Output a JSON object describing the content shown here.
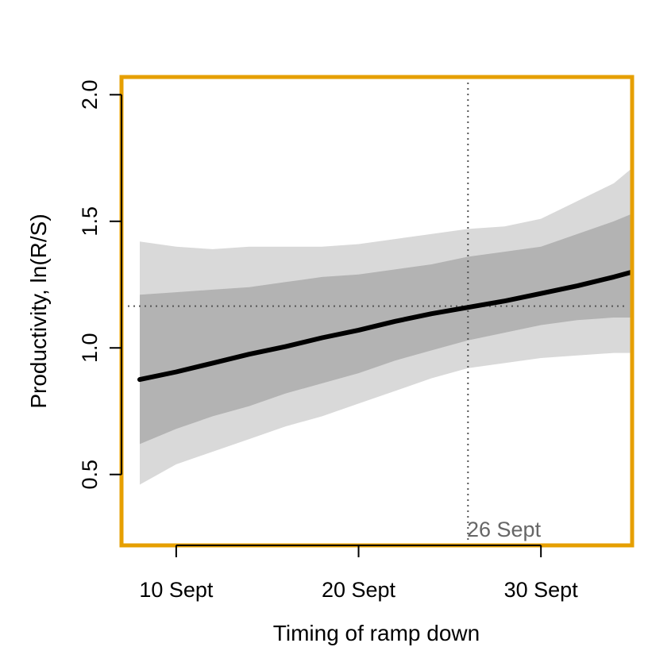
{
  "chart_data": {
    "type": "line",
    "xlabel": "Timing of ramp down",
    "ylabel": "Productivity, ln(R/S)",
    "xlim": [
      "2020-09-07",
      "2020-10-05"
    ],
    "ylim": [
      0.22,
      2.07
    ],
    "x_ticks": [
      {
        "value": "2020-09-10",
        "label": "10 Sept"
      },
      {
        "value": "2020-09-20",
        "label": "20 Sept"
      },
      {
        "value": "2020-09-30",
        "label": "30 Sept"
      }
    ],
    "y_ticks": [
      {
        "value": 0.5,
        "label": "0.5"
      },
      {
        "value": 1.0,
        "label": "1.0"
      },
      {
        "value": 1.5,
        "label": "1.5"
      },
      {
        "value": 2.0,
        "label": "2.0"
      }
    ],
    "reference_lines": {
      "vertical": {
        "x": "2020-09-26",
        "label": "26 Sept"
      },
      "horizontal": {
        "y": 1.165
      }
    },
    "series": [
      {
        "role": "outer-interval",
        "color": "#d9d9d9",
        "x": [
          "2020-09-08",
          "2020-09-10",
          "2020-09-12",
          "2020-09-14",
          "2020-09-16",
          "2020-09-18",
          "2020-09-20",
          "2020-09-22",
          "2020-09-24",
          "2020-09-26",
          "2020-09-28",
          "2020-09-30",
          "2020-10-02",
          "2020-10-04",
          "2020-10-05"
        ],
        "upper": [
          1.42,
          1.4,
          1.39,
          1.4,
          1.4,
          1.4,
          1.41,
          1.43,
          1.45,
          1.47,
          1.48,
          1.51,
          1.58,
          1.65,
          1.71
        ],
        "lower": [
          0.46,
          0.54,
          0.59,
          0.64,
          0.69,
          0.73,
          0.78,
          0.83,
          0.88,
          0.92,
          0.94,
          0.96,
          0.97,
          0.98,
          0.98
        ]
      },
      {
        "role": "inner-interval",
        "color": "#b3b3b3",
        "x": [
          "2020-09-08",
          "2020-09-10",
          "2020-09-12",
          "2020-09-14",
          "2020-09-16",
          "2020-09-18",
          "2020-09-20",
          "2020-09-22",
          "2020-09-24",
          "2020-09-26",
          "2020-09-28",
          "2020-09-30",
          "2020-10-02",
          "2020-10-04",
          "2020-10-05"
        ],
        "upper": [
          1.21,
          1.22,
          1.23,
          1.24,
          1.26,
          1.28,
          1.29,
          1.31,
          1.33,
          1.36,
          1.38,
          1.4,
          1.45,
          1.5,
          1.53
        ],
        "lower": [
          0.62,
          0.68,
          0.73,
          0.77,
          0.82,
          0.86,
          0.9,
          0.95,
          0.99,
          1.03,
          1.06,
          1.09,
          1.11,
          1.12,
          1.12
        ]
      },
      {
        "role": "median",
        "color": "#000000",
        "x": [
          "2020-09-08",
          "2020-09-10",
          "2020-09-12",
          "2020-09-14",
          "2020-09-16",
          "2020-09-18",
          "2020-09-20",
          "2020-09-22",
          "2020-09-24",
          "2020-09-26",
          "2020-09-28",
          "2020-09-30",
          "2020-10-02",
          "2020-10-04",
          "2020-10-05"
        ],
        "y": [
          0.875,
          0.905,
          0.94,
          0.975,
          1.005,
          1.04,
          1.07,
          1.105,
          1.135,
          1.16,
          1.185,
          1.215,
          1.245,
          1.28,
          1.3
        ]
      }
    ],
    "colors": {
      "frame": "#e69f00",
      "reference": "#555555",
      "annotation": "#666666"
    },
    "grid": false,
    "legend": "none"
  }
}
